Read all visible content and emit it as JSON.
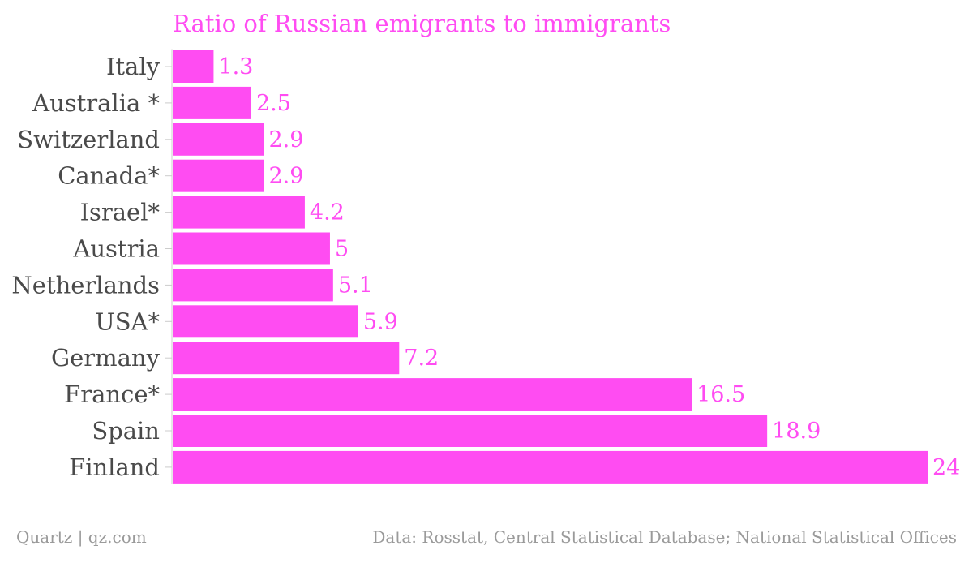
{
  "chart_data": {
    "type": "bar",
    "orientation": "horizontal",
    "title": "Ratio of Russian emigrants to immigrants",
    "categories": [
      "Italy",
      "Australia *",
      "Switzerland",
      "Canada*",
      "Israel*",
      "Austria",
      "Netherlands",
      "USA*",
      "Germany",
      "France*",
      "Spain",
      "Finland"
    ],
    "values": [
      1.3,
      2.5,
      2.9,
      2.9,
      4.2,
      5,
      5.1,
      5.9,
      7.2,
      16.5,
      18.9,
      24
    ],
    "value_labels": [
      "1.3",
      "2.5",
      "2.9",
      "2.9",
      "4.2",
      "5",
      "5.1",
      "5.9",
      "7.2",
      "16.5",
      "18.9",
      "24"
    ],
    "xlim": [
      0,
      24
    ],
    "grid": false,
    "colors": {
      "bar": "#ff4cf2",
      "label": "#ff4cf2",
      "title": "#ff4cf2",
      "category_text": "#4a4a4a",
      "footer_text": "#9a9a9a",
      "axis_line": "#cccccc"
    }
  },
  "footer": {
    "source_left": "Quartz | qz.com",
    "source_right": "Data: Rosstat, Central Statistical Database; National Statistical Offices"
  }
}
